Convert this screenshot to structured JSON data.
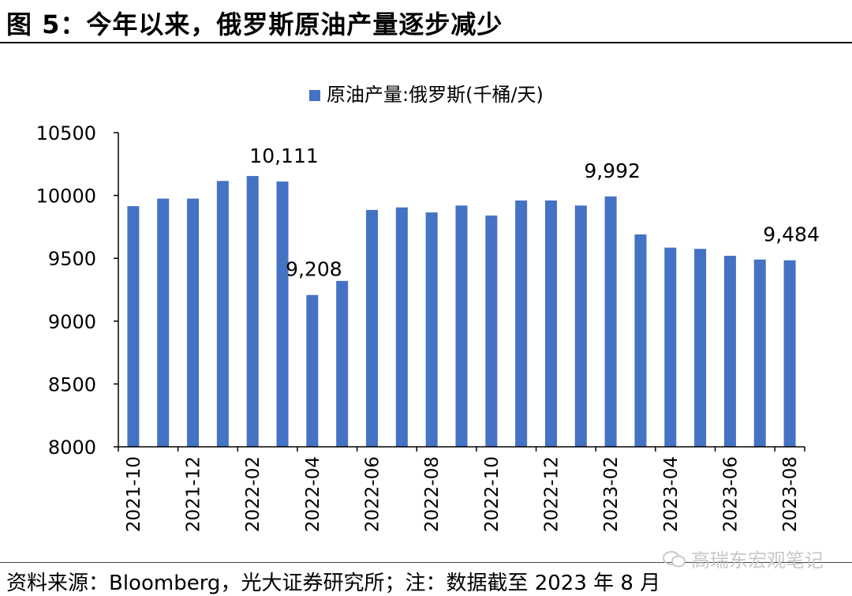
{
  "figure": {
    "title": "图 5：今年以来，俄罗斯原油产量逐步减少",
    "source": "资料来源：Bloomberg，光大证券研究所；注：数据截至 2023 年 8 月",
    "watermark": "高瑞东宏观笔记",
    "watermark_icon": "wechat-icon"
  },
  "chart_data": {
    "type": "bar",
    "legend_position": "top",
    "grid": false,
    "ylim": [
      8000,
      10500
    ],
    "yticks": [
      "8000",
      "8500",
      "9000",
      "9500",
      "10000",
      "10500"
    ],
    "bar_color": "#4472C4",
    "series": [
      {
        "name": "原油产量:俄罗斯(千桶/天)",
        "values": [
          9915,
          9975,
          9975,
          10115,
          10155,
          10111,
          9208,
          9320,
          9885,
          9905,
          9865,
          9920,
          9840,
          9960,
          9960,
          9920,
          9992,
          9690,
          9585,
          9575,
          9520,
          9490,
          9484
        ]
      }
    ],
    "categories": [
      "2021-10",
      "2021-11",
      "2021-12",
      "2022-01",
      "2022-02",
      "2022-03",
      "2022-04",
      "2022-05",
      "2022-06",
      "2022-07",
      "2022-08",
      "2022-09",
      "2022-10",
      "2022-11",
      "2022-12",
      "2023-01",
      "2023-02",
      "2023-03",
      "2023-04",
      "2023-05",
      "2023-06",
      "2023-07",
      "2023-08"
    ],
    "xtick_labels": [
      "2021-10",
      "2021-12",
      "2022-02",
      "2022-04",
      "2022-06",
      "2022-08",
      "2022-10",
      "2022-12",
      "2023-02",
      "2023-04",
      "2023-06",
      "2023-08"
    ],
    "data_labels": [
      {
        "index": 5,
        "text": "10,111"
      },
      {
        "index": 6,
        "text": "9,208"
      },
      {
        "index": 16,
        "text": "9,992"
      },
      {
        "index": 22,
        "text": "9,484"
      }
    ]
  }
}
